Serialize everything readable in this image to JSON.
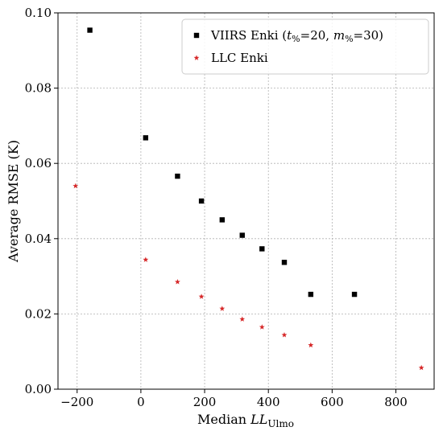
{
  "chart_data": {
    "type": "scatter",
    "title": "",
    "xlabel": "Median LL_Ulmo",
    "xlabel_parts": {
      "prefix": "Median ",
      "main": "LL",
      "subscript": "Ulmo"
    },
    "ylabel": "Average RMSE (K)",
    "xlim": [
      -260,
      920
    ],
    "ylim": [
      0.0,
      0.1
    ],
    "xticks": [
      -200,
      0,
      200,
      400,
      600,
      800
    ],
    "xtick_labels": [
      "−200",
      "0",
      "200",
      "400",
      "600",
      "800"
    ],
    "yticks": [
      0.0,
      0.02,
      0.04,
      0.06,
      0.08,
      0.1
    ],
    "ytick_labels": [
      "0.00",
      "0.02",
      "0.04",
      "0.06",
      "0.08",
      "0.10"
    ],
    "grid": true,
    "legend_position": "top-right",
    "series": [
      {
        "name": "VIIRS Enki (t%=20, m%=30)",
        "name_parts": {
          "lead": "VIIRS Enki (",
          "t": "t",
          "t_sub": "%",
          "t_val": "=20, ",
          "m": "m",
          "m_sub": "%",
          "m_val": "=30)"
        },
        "marker": "square",
        "color": "#000000",
        "x": [
          -160,
          15,
          115,
          190,
          255,
          318,
          380,
          450,
          533,
          670
        ],
        "y": [
          0.0954,
          0.0668,
          0.0566,
          0.05,
          0.045,
          0.0409,
          0.0373,
          0.0337,
          0.0252,
          0.0252
        ]
      },
      {
        "name": "LLC Enki",
        "marker": "star",
        "color": "#d62728",
        "x": [
          -205,
          15,
          115,
          190,
          255,
          318,
          380,
          450,
          533,
          880
        ],
        "y": [
          0.054,
          0.0344,
          0.0285,
          0.0246,
          0.0214,
          0.0186,
          0.0165,
          0.0144,
          0.0117,
          0.0057
        ]
      }
    ]
  }
}
